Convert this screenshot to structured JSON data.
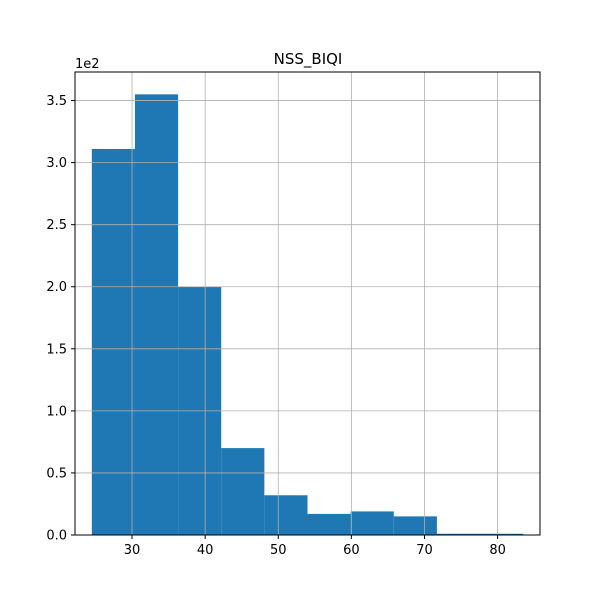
{
  "chart_data": {
    "type": "bar",
    "title": "NSS_BIQI",
    "y_offset_label": "1e2",
    "xlabel": "",
    "ylabel": "",
    "grid": true,
    "bar_color": "#1f77b4",
    "bins": [
      {
        "x0": 24.5,
        "x1": 30.4,
        "count": 311
      },
      {
        "x0": 30.4,
        "x1": 36.3,
        "count": 355
      },
      {
        "x0": 36.3,
        "x1": 42.2,
        "count": 200
      },
      {
        "x0": 42.2,
        "x1": 48.1,
        "count": 70
      },
      {
        "x0": 48.1,
        "x1": 54.0,
        "count": 32
      },
      {
        "x0": 54.0,
        "x1": 59.9,
        "count": 17
      },
      {
        "x0": 59.9,
        "x1": 65.8,
        "count": 19
      },
      {
        "x0": 65.8,
        "x1": 71.7,
        "count": 15
      },
      {
        "x0": 71.7,
        "x1": 77.6,
        "count": 1
      },
      {
        "x0": 77.6,
        "x1": 83.5,
        "count": 1
      }
    ],
    "xlim": [
      22.2,
      85.8
    ],
    "ylim": [
      0,
      373
    ],
    "x_ticks": [
      30,
      40,
      50,
      60,
      70,
      80
    ],
    "x_tick_labels": [
      "30",
      "40",
      "50",
      "60",
      "70",
      "80"
    ],
    "y_ticks": [
      0,
      50,
      100,
      150,
      200,
      250,
      300,
      350
    ],
    "y_tick_labels": [
      "0.0",
      "0.5",
      "1.0",
      "1.5",
      "2.0",
      "2.5",
      "3.0",
      "3.5"
    ]
  }
}
